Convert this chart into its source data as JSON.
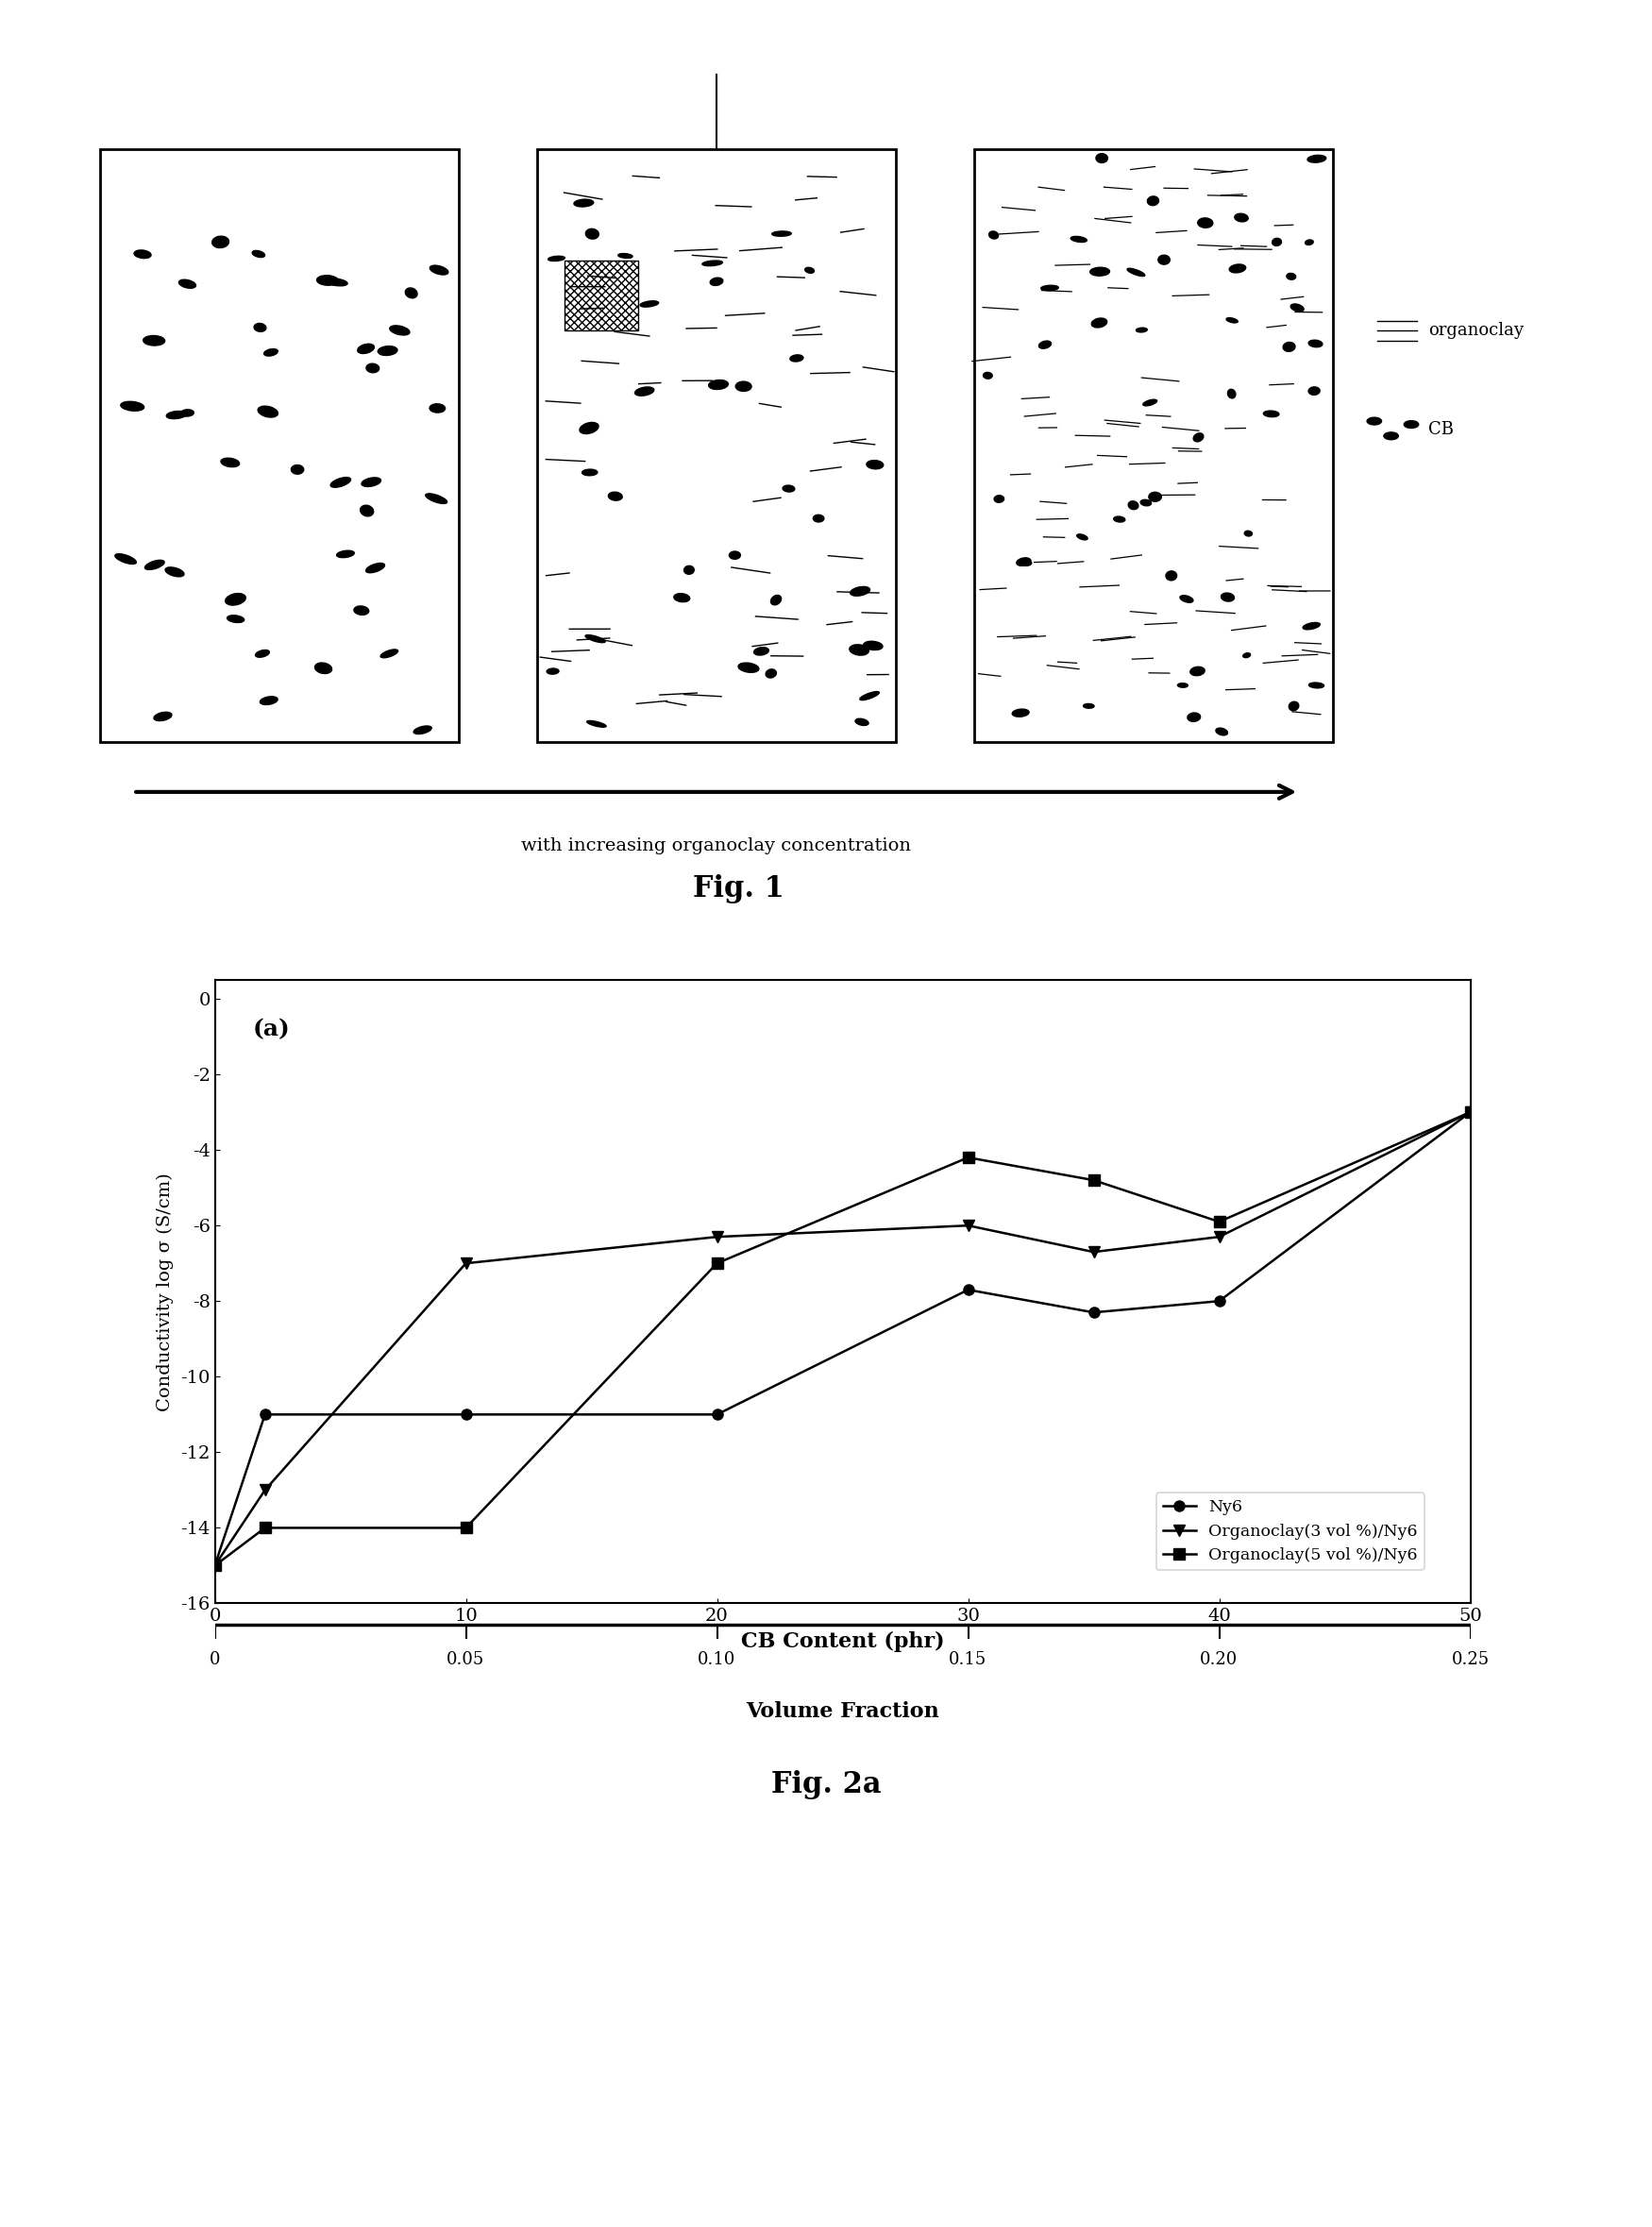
{
  "fig1_title": "Fig. 1",
  "fig2a_title": "Fig. 2a",
  "panel_label": "(a)",
  "xlabel_top": "CB Content (phr)",
  "xlabel_bottom": "Volume Fraction",
  "ylabel": "Conductivity log σ (S/cm)",
  "arrow_label": "with increasing organoclay concentration",
  "legend_organoclay": "organoclay",
  "legend_CB": "CB",
  "yticks": [
    0,
    -2,
    -4,
    -6,
    -8,
    -10,
    -12,
    -14,
    -16
  ],
  "ylim": [
    -16,
    0.5
  ],
  "xlim": [
    0,
    50
  ],
  "ny6_x": [
    0,
    2,
    10,
    20,
    30,
    35,
    40,
    50
  ],
  "ny6_y": [
    -15.0,
    -11.0,
    -11.0,
    -11.0,
    -7.7,
    -8.3,
    -8.0,
    -3.0
  ],
  "org3_x": [
    0,
    2,
    10,
    20,
    30,
    35,
    40,
    50
  ],
  "org3_y": [
    -15.0,
    -13.0,
    -7.0,
    -6.3,
    -6.0,
    -6.7,
    -6.3,
    -3.0
  ],
  "org5_x": [
    0,
    2,
    10,
    20,
    30,
    35,
    40,
    50
  ],
  "org5_y": [
    -15.0,
    -14.0,
    -14.0,
    -7.0,
    -4.2,
    -4.8,
    -5.9,
    -3.0
  ],
  "vf_tick_positions": [
    0,
    10,
    20,
    30,
    40,
    50
  ],
  "vf_tick_labels": [
    "0",
    "0.05",
    "0.10",
    "0.15",
    "0.20",
    "0.25"
  ],
  "background_color": "#ffffff"
}
